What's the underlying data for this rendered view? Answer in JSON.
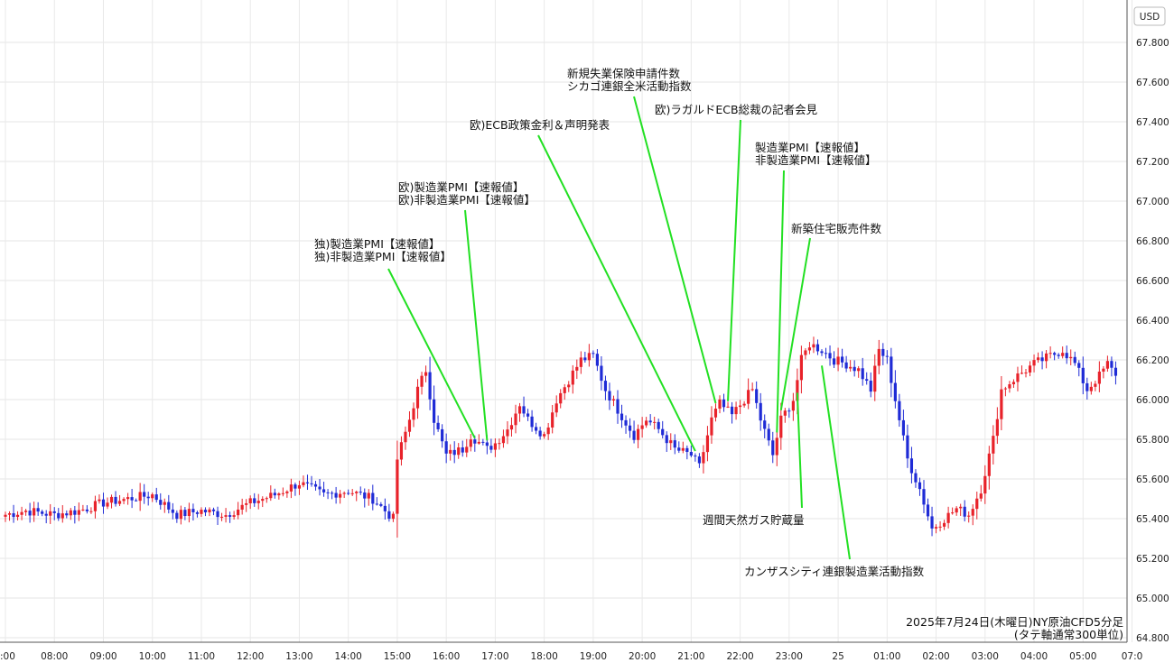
{
  "currency_label": "USD",
  "caption": {
    "line1": "2025年7月24日(木曜日)NY原油CFD5分足",
    "line2": "(タテ軸通常300単位)"
  },
  "chart_data": {
    "type": "candlestick",
    "y_ticks": [
      "64.800",
      "65.000",
      "65.200",
      "65.400",
      "65.600",
      "65.800",
      "66.000",
      "66.200",
      "66.400",
      "66.600",
      "66.800",
      "67.000",
      "67.200",
      "67.400",
      "67.600",
      "67.800"
    ],
    "ylim": [
      64.8,
      67.9
    ],
    "x_ticks": [
      {
        "label": ":00",
        "t": 0
      },
      {
        "label": "08:00",
        "t": 12
      },
      {
        "label": "09:00",
        "t": 24
      },
      {
        "label": "10:00",
        "t": 36
      },
      {
        "label": "11:00",
        "t": 48
      },
      {
        "label": "12:00",
        "t": 60
      },
      {
        "label": "13:00",
        "t": 72
      },
      {
        "label": "14:00",
        "t": 84
      },
      {
        "label": "15:00",
        "t": 96
      },
      {
        "label": "16:00",
        "t": 108
      },
      {
        "label": "17:00",
        "t": 120
      },
      {
        "label": "18:00",
        "t": 132
      },
      {
        "label": "19:00",
        "t": 144
      },
      {
        "label": "20:00",
        "t": 156
      },
      {
        "label": "21:00",
        "t": 168
      },
      {
        "label": "22:00",
        "t": 180
      },
      {
        "label": "23:00",
        "t": 192
      },
      {
        "label": "25",
        "t": 204
      },
      {
        "label": "01:00",
        "t": 216
      },
      {
        "label": "02:00",
        "t": 228
      },
      {
        "label": "03:00",
        "t": 240
      },
      {
        "label": "04:00",
        "t": 252
      },
      {
        "label": "05:00",
        "t": 264
      },
      {
        "label": "07:0",
        "t": 276
      }
    ],
    "up_color": "#e8222a",
    "down_color": "#1f2bd6",
    "keypoints": [
      [
        0,
        65.42
      ],
      [
        5,
        65.44
      ],
      [
        12,
        65.42
      ],
      [
        18,
        65.44
      ],
      [
        24,
        65.48
      ],
      [
        30,
        65.5
      ],
      [
        36,
        65.52
      ],
      [
        42,
        65.42
      ],
      [
        48,
        65.44
      ],
      [
        54,
        65.42
      ],
      [
        60,
        65.48
      ],
      [
        66,
        65.52
      ],
      [
        72,
        65.58
      ],
      [
        78,
        65.52
      ],
      [
        84,
        65.54
      ],
      [
        90,
        65.5
      ],
      [
        95,
        65.4
      ],
      [
        96,
        65.7
      ],
      [
        99,
        65.9
      ],
      [
        101,
        66.05
      ],
      [
        103,
        66.15
      ],
      [
        105,
        65.9
      ],
      [
        108,
        65.72
      ],
      [
        112,
        65.75
      ],
      [
        114,
        65.82
      ],
      [
        118,
        65.75
      ],
      [
        120,
        65.78
      ],
      [
        123,
        65.85
      ],
      [
        126,
        65.98
      ],
      [
        128,
        65.9
      ],
      [
        132,
        65.82
      ],
      [
        135,
        66.0
      ],
      [
        138,
        66.1
      ],
      [
        141,
        66.2
      ],
      [
        144,
        66.22
      ],
      [
        147,
        66.05
      ],
      [
        150,
        65.95
      ],
      [
        154,
        65.82
      ],
      [
        157,
        65.9
      ],
      [
        160,
        65.85
      ],
      [
        164,
        65.75
      ],
      [
        168,
        65.72
      ],
      [
        170,
        65.66
      ],
      [
        173,
        65.9
      ],
      [
        175,
        65.98
      ],
      [
        178,
        65.92
      ],
      [
        181,
        66.0
      ],
      [
        183,
        66.05
      ],
      [
        185,
        65.9
      ],
      [
        188,
        65.72
      ],
      [
        190,
        65.9
      ],
      [
        193,
        66.0
      ],
      [
        195,
        66.2
      ],
      [
        197,
        66.28
      ],
      [
        200,
        66.25
      ],
      [
        203,
        66.2
      ],
      [
        206,
        66.18
      ],
      [
        209,
        66.15
      ],
      [
        212,
        66.05
      ],
      [
        214,
        66.25
      ],
      [
        216,
        66.2
      ],
      [
        218,
        66.0
      ],
      [
        221,
        65.7
      ],
      [
        224,
        65.55
      ],
      [
        227,
        65.35
      ],
      [
        230,
        65.4
      ],
      [
        233,
        65.45
      ],
      [
        236,
        65.42
      ],
      [
        239,
        65.55
      ],
      [
        242,
        65.8
      ],
      [
        244,
        66.05
      ],
      [
        248,
        66.12
      ],
      [
        252,
        66.18
      ],
      [
        256,
        66.22
      ],
      [
        259,
        66.25
      ],
      [
        262,
        66.18
      ],
      [
        265,
        66.05
      ],
      [
        268,
        66.12
      ],
      [
        270,
        66.18
      ],
      [
        272,
        66.12
      ]
    ]
  },
  "annotations": [
    {
      "lines": [
        "独)製造業PMI【速報値】",
        "独)非製造業PMI【速報値】"
      ],
      "t": 115
    },
    {
      "lines": [
        "欧)製造業PMI【速報値】",
        "欧)非製造業PMI【速報値】"
      ],
      "t": 118
    },
    {
      "lines": [
        "欧)ECB政策金利＆声明発表"
      ],
      "t": 169
    },
    {
      "lines": [
        "新規失業保険申請件数",
        "シカゴ連銀全米活動指数"
      ],
      "t": 174
    },
    {
      "lines": [
        "欧)ラガルドECB総裁の記者会見"
      ],
      "t": 177
    },
    {
      "lines": [
        "製造業PMI【速報値】",
        "非製造業PMI【速報値】"
      ],
      "t": 189
    },
    {
      "lines": [
        "新築住宅販売件数"
      ],
      "t": 190
    },
    {
      "lines": [
        "週間天然ガス貯蔵量"
      ],
      "t": 194
    },
    {
      "lines": [
        "カンザスシティ連銀製造業活動指数"
      ],
      "t": 200
    }
  ]
}
